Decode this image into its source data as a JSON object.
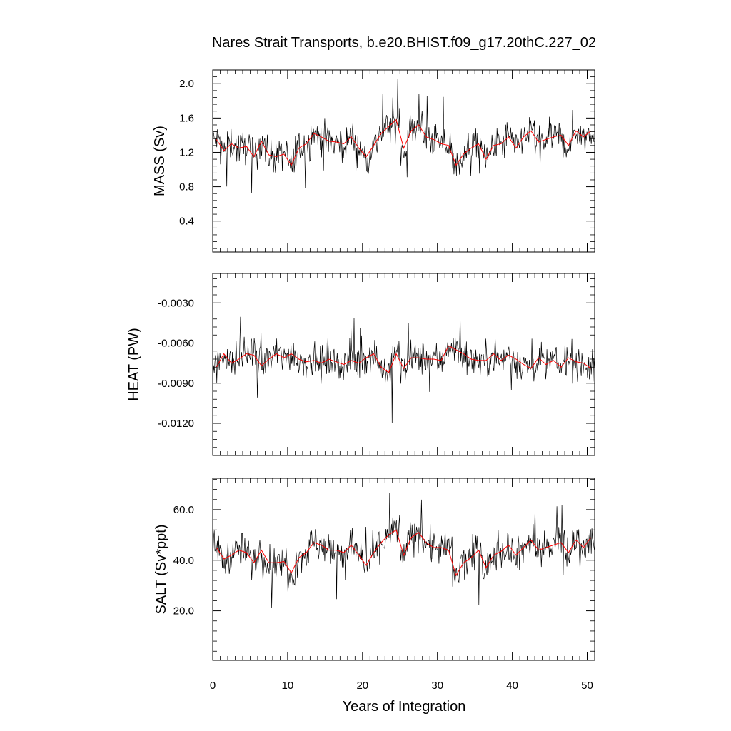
{
  "chart_data": {
    "type": "line",
    "title": "Nares Strait Transports, b.e20.BHIST.f09_g17.20thC.227_02",
    "xlabel": "Years of Integration",
    "xlim": [
      0,
      51
    ],
    "x_ticks": [
      "0",
      "10",
      "20",
      "30",
      "40",
      "50"
    ],
    "colors": {
      "monthly": "#000000",
      "annual": "#ff0000"
    },
    "panels": [
      {
        "ylabel": "MASS (Sv)",
        "ylim": [
          0.04,
          2.16
        ],
        "y_ticks": [
          0.4,
          0.8,
          1.2,
          1.6,
          2.0
        ],
        "y_tick_labels": [
          "0.4",
          "0.8",
          "1.2",
          "1.6",
          "2.0"
        ],
        "series": [
          {
            "style": "annual-mean",
            "x": [
              0.5,
              1.5,
              2.5,
              3.5,
              4.5,
              5.5,
              6.5,
              7.5,
              8.5,
              9.5,
              10.5,
              11.5,
              12.5,
              13.5,
              14.5,
              15.5,
              16.5,
              17.5,
              18.5,
              19.5,
              20.5,
              21.5,
              22.5,
              23.5,
              24.5,
              25.5,
              26.5,
              27.5,
              28.5,
              29.5,
              30.5,
              31.5,
              32.5,
              33.5,
              34.5,
              35.5,
              36.5,
              37.5,
              38.5,
              39.5,
              40.5,
              41.5,
              42.5,
              43.5,
              44.5,
              45.5,
              46.5,
              47.5,
              48.5,
              49.5,
              50.5
            ],
            "y": [
              1.35,
              1.22,
              1.3,
              1.25,
              1.27,
              1.15,
              1.33,
              1.17,
              1.15,
              1.18,
              1.05,
              1.25,
              1.3,
              1.42,
              1.38,
              1.33,
              1.32,
              1.3,
              1.38,
              1.25,
              1.15,
              1.28,
              1.42,
              1.5,
              1.58,
              1.25,
              1.45,
              1.52,
              1.38,
              1.35,
              1.3,
              1.28,
              1.05,
              1.18,
              1.25,
              1.3,
              1.12,
              1.28,
              1.3,
              1.38,
              1.25,
              1.38,
              1.45,
              1.32,
              1.35,
              1.38,
              1.4,
              1.28,
              1.45,
              1.38,
              1.45
            ]
          }
        ]
      },
      {
        "ylabel": "HEAT (PW)",
        "ylim": [
          -0.0144,
          -0.0008
        ],
        "y_ticks": [
          -0.003,
          -0.006,
          -0.009,
          -0.012
        ],
        "y_tick_labels": [
          "-0.0030",
          "-0.0060",
          "-0.0090",
          "-0.0120"
        ],
        "series": [
          {
            "style": "annual-mean",
            "x": [
              0.5,
              1.5,
              2.5,
              3.5,
              4.5,
              5.5,
              6.5,
              7.5,
              8.5,
              9.5,
              10.5,
              11.5,
              12.5,
              13.5,
              14.5,
              15.5,
              16.5,
              17.5,
              18.5,
              19.5,
              20.5,
              21.5,
              22.5,
              23.5,
              24.5,
              25.5,
              26.5,
              27.5,
              28.5,
              29.5,
              30.5,
              31.5,
              32.5,
              33.5,
              34.5,
              35.5,
              36.5,
              37.5,
              38.5,
              39.5,
              40.5,
              41.5,
              42.5,
              43.5,
              44.5,
              45.5,
              46.5,
              47.5,
              48.5,
              49.5,
              50.5
            ],
            "y": [
              -0.0078,
              -0.0068,
              -0.0075,
              -0.0072,
              -0.0068,
              -0.0069,
              -0.0077,
              -0.0072,
              -0.0068,
              -0.0071,
              -0.0068,
              -0.0072,
              -0.0074,
              -0.0073,
              -0.0075,
              -0.0072,
              -0.0074,
              -0.0076,
              -0.0073,
              -0.0075,
              -0.0071,
              -0.0068,
              -0.0078,
              -0.0082,
              -0.0068,
              -0.0079,
              -0.0071,
              -0.0071,
              -0.0072,
              -0.0072,
              -0.0073,
              -0.0062,
              -0.0065,
              -0.0068,
              -0.0072,
              -0.0073,
              -0.0073,
              -0.0068,
              -0.0073,
              -0.0069,
              -0.0072,
              -0.0076,
              -0.0079,
              -0.0071,
              -0.0076,
              -0.0073,
              -0.0078,
              -0.0071,
              -0.0074,
              -0.0075,
              -0.0079
            ]
          }
        ]
      },
      {
        "ylabel": "SALT (Sv*ppt)",
        "ylim": [
          0.4,
          72.4
        ],
        "y_ticks": [
          20,
          40,
          60
        ],
        "y_tick_labels": [
          "20.0",
          "40.0",
          "60.0"
        ],
        "series": [
          {
            "style": "annual-mean",
            "x": [
              0.5,
              1.5,
              2.5,
              3.5,
              4.5,
              5.5,
              6.5,
              7.5,
              8.5,
              9.5,
              10.5,
              11.5,
              12.5,
              13.5,
              14.5,
              15.5,
              16.5,
              17.5,
              18.5,
              19.5,
              20.5,
              21.5,
              22.5,
              23.5,
              24.5,
              25.5,
              26.5,
              27.5,
              28.5,
              29.5,
              30.5,
              31.5,
              32.5,
              33.5,
              34.5,
              35.5,
              36.5,
              37.5,
              38.5,
              39.5,
              40.5,
              41.5,
              42.5,
              43.5,
              44.5,
              45.5,
              46.5,
              47.5,
              48.5,
              49.5,
              50.5
            ],
            "y": [
              45,
              40.5,
              42,
              44,
              43,
              39,
              44,
              39,
              39,
              39.5,
              35,
              41,
              43,
              47,
              46,
              44,
              44,
              43,
              46,
              42,
              38,
              43,
              47,
              50,
              52,
              42,
              49,
              51,
              47,
              45,
              45,
              44,
              34,
              39,
              41,
              44,
              37,
              42,
              43.5,
              46,
              42,
              45,
              48,
              44,
              45,
              46,
              47,
              43,
              48,
              45,
              49
            ]
          }
        ]
      }
    ]
  }
}
